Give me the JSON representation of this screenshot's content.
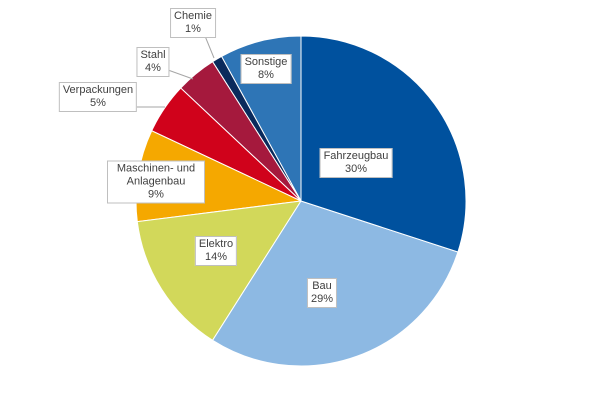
{
  "chart_data": {
    "type": "pie",
    "categories": [
      "Fahrzeugbau",
      "Bau",
      "Elektro",
      "Maschinen- und Anlagenbau",
      "Verpackungen",
      "Stahl",
      "Chemie",
      "Sonstige"
    ],
    "values": [
      30,
      29,
      14,
      9,
      5,
      4,
      1,
      8
    ],
    "value_labels": [
      "30%",
      "29%",
      "14%",
      "9%",
      "5%",
      "4%",
      "1%",
      "8%"
    ],
    "colors": [
      "#00519e",
      "#8db9e3",
      "#d2d85a",
      "#f5a800",
      "#d0021b",
      "#a5193d",
      "#0a2a5c",
      "#2e75b6"
    ]
  }
}
